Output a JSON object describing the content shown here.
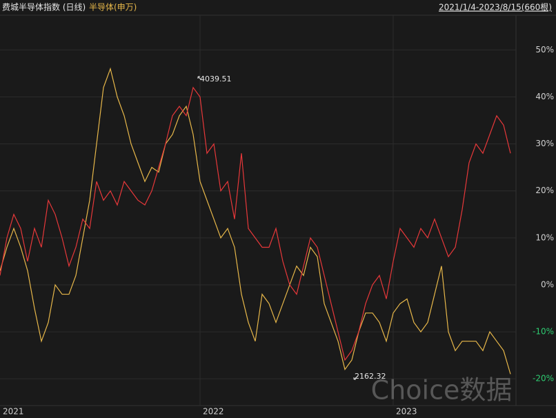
{
  "chart_data": {
    "type": "line",
    "title": "费城半导体指数 (日线)",
    "range_label": "2021/1/4-2023/8/15(660根)",
    "watermark": "Choice数据",
    "annotations": [
      "4039.51",
      "2162.32"
    ],
    "categories": [
      "2021",
      null,
      null,
      null,
      null,
      null,
      null,
      null,
      null,
      null,
      null,
      null,
      null,
      null,
      null,
      null,
      null,
      null,
      null,
      null,
      null,
      null,
      null,
      null,
      null,
      null,
      null,
      null,
      null,
      "2022",
      null,
      null,
      null,
      null,
      null,
      null,
      null,
      null,
      null,
      null,
      null,
      null,
      null,
      null,
      null,
      null,
      null,
      null,
      null,
      null,
      null,
      null,
      null,
      null,
      null,
      null,
      null,
      "2023",
      null,
      null,
      null,
      null,
      null,
      null,
      null,
      null,
      null,
      null,
      null,
      null,
      null,
      null,
      null,
      null,
      null
    ],
    "series": [
      {
        "name": "费城半导体指数 (日线)",
        "color": "#e8383a",
        "values": [
          2,
          10,
          15,
          12,
          5,
          12,
          8,
          18,
          15,
          10,
          4,
          8,
          14,
          12,
          22,
          18,
          20,
          17,
          22,
          20,
          18,
          17,
          20,
          25,
          30,
          36,
          38,
          36,
          42,
          40,
          28,
          30,
          20,
          22,
          14,
          28,
          12,
          10,
          8,
          8,
          12,
          5,
          0,
          -2,
          4,
          10,
          8,
          2,
          -4,
          -10,
          -16,
          -14,
          -10,
          -4,
          0,
          2,
          -3,
          5,
          12,
          10,
          8,
          12,
          10,
          14,
          10,
          6,
          8,
          16,
          26,
          30,
          28,
          32,
          36,
          34,
          28
        ]
      },
      {
        "name": "半导体(申万)",
        "color": "#e8b84a",
        "values": [
          3,
          8,
          12,
          8,
          3,
          -5,
          -12,
          -8,
          0,
          -2,
          -2,
          2,
          10,
          18,
          30,
          42,
          46,
          40,
          36,
          30,
          26,
          22,
          25,
          24,
          30,
          32,
          36,
          38,
          32,
          22,
          18,
          14,
          10,
          12,
          8,
          -2,
          -8,
          -12,
          -2,
          -4,
          -8,
          -4,
          0,
          4,
          2,
          8,
          6,
          -4,
          -8,
          -12,
          -18,
          -16,
          -10,
          -6,
          -6,
          -8,
          -12,
          -6,
          -4,
          -3,
          -8,
          -10,
          -8,
          -2,
          4,
          -10,
          -14,
          -12,
          -12,
          -12,
          -14,
          -10,
          -12,
          -14,
          -19
        ]
      }
    ],
    "ylim": [
      -25.7,
      57.4
    ],
    "yticks": [
      {
        "value": -20,
        "label": "-20%"
      },
      {
        "value": -10,
        "label": "-10%"
      },
      {
        "value": 0,
        "label": "0%"
      },
      {
        "value": 10,
        "label": "10%"
      },
      {
        "value": 20,
        "label": "20%"
      },
      {
        "value": 30,
        "label": "30%"
      },
      {
        "value": 40,
        "label": "40%"
      },
      {
        "value": 50,
        "label": "50%"
      }
    ],
    "grid": true
  }
}
